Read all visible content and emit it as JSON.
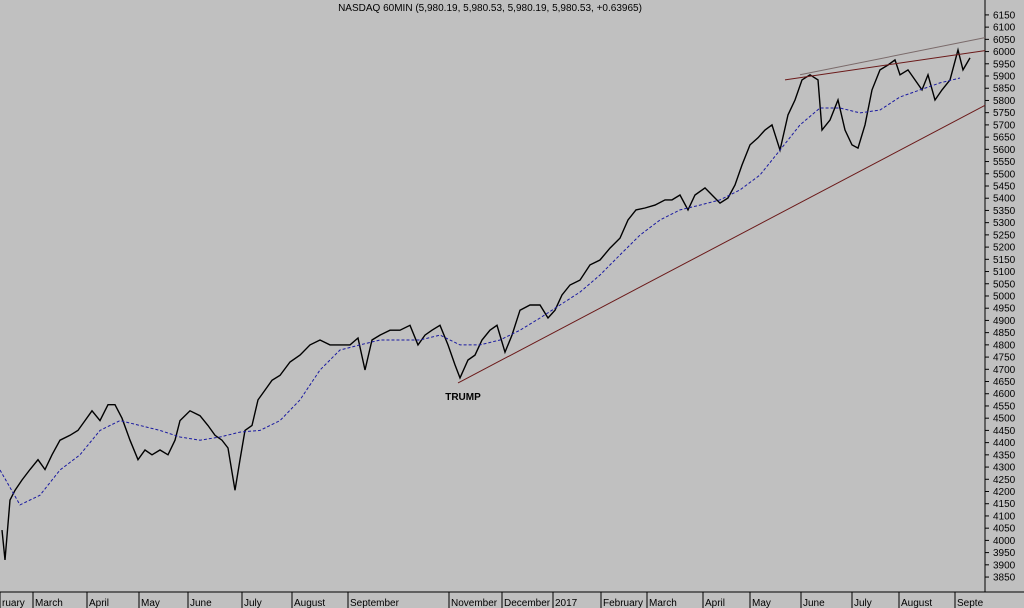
{
  "chart_data": {
    "type": "line",
    "title": "NASDAQ 60MIN (5,980.19, 5,980.53, 5,980.19, 5,980.53, +0.63965)",
    "annotation": "TRUMP",
    "xlim": [
      0,
      985
    ],
    "ylim": [
      3797,
      6211
    ],
    "xticks": [
      {
        "value": 0,
        "label": "ruary"
      },
      {
        "value": 33,
        "label": "March"
      },
      {
        "value": 87,
        "label": "April"
      },
      {
        "value": 139,
        "label": "May"
      },
      {
        "value": 188,
        "label": "June"
      },
      {
        "value": 242,
        "label": "July"
      },
      {
        "value": 292,
        "label": "August"
      },
      {
        "value": 348,
        "label": "September"
      },
      {
        "value": 449,
        "label": "November"
      },
      {
        "value": 502,
        "label": "December"
      },
      {
        "value": 553,
        "label": "2017"
      },
      {
        "value": 601,
        "label": "February"
      },
      {
        "value": 647,
        "label": "March"
      },
      {
        "value": 703,
        "label": "April"
      },
      {
        "value": 750,
        "label": "May"
      },
      {
        "value": 801,
        "label": "June"
      },
      {
        "value": 852,
        "label": "July"
      },
      {
        "value": 899,
        "label": "August"
      },
      {
        "value": 955,
        "label": "Septe"
      }
    ],
    "yticks": [
      3850,
      3900,
      3950,
      4000,
      4050,
      4100,
      4150,
      4200,
      4250,
      4300,
      4350,
      4400,
      4450,
      4500,
      4550,
      4600,
      4650,
      4700,
      4750,
      4800,
      4850,
      4900,
      4950,
      5000,
      5050,
      5100,
      5150,
      5200,
      5250,
      5300,
      5350,
      5400,
      5450,
      5500,
      5550,
      5600,
      5650,
      5700,
      5750,
      5800,
      5850,
      5900,
      5950,
      6000,
      6050,
      6100,
      6150
    ],
    "series": [
      {
        "color": "#000000",
        "dash": false,
        "x": [
          2,
          5,
          10,
          15,
          22,
          30,
          38,
          45,
          52,
          60,
          70,
          78,
          85,
          92,
          100,
          108,
          115,
          122,
          130,
          138,
          145,
          152,
          160,
          168,
          175,
          180,
          190,
          200,
          208,
          215,
          222,
          228,
          235,
          240,
          245,
          252,
          258,
          265,
          272,
          280,
          290,
          300,
          310,
          320,
          330,
          340,
          350,
          358,
          365,
          372,
          380,
          390,
          400,
          410,
          418,
          425,
          432,
          440,
          448,
          455,
          460,
          468,
          475,
          482,
          490,
          497,
          505,
          512,
          520,
          530,
          540,
          548,
          555,
          562,
          570,
          580,
          590,
          600,
          610,
          620,
          628,
          636,
          645,
          655,
          665,
          672,
          680,
          688,
          695,
          705,
          712,
          720,
          728,
          735,
          742,
          750,
          758,
          765,
          772,
          780,
          788,
          795,
          802,
          810,
          818,
          822,
          830,
          838,
          845,
          852,
          858,
          865,
          872,
          880,
          888,
          895,
          900,
          908,
          915,
          922,
          928,
          935,
          942,
          950,
          958,
          963,
          970
        ],
        "values": [
          4042,
          3920,
          4165,
          4205,
          4247,
          4290,
          4330,
          4290,
          4350,
          4410,
          4430,
          4450,
          4490,
          4530,
          4490,
          4555,
          4555,
          4500,
          4410,
          4330,
          4370,
          4350,
          4370,
          4350,
          4410,
          4490,
          4530,
          4510,
          4470,
          4430,
          4410,
          4378,
          4205,
          4330,
          4450,
          4470,
          4575,
          4615,
          4655,
          4675,
          4730,
          4758,
          4800,
          4820,
          4800,
          4800,
          4800,
          4828,
          4697,
          4820,
          4840,
          4860,
          4860,
          4880,
          4800,
          4840,
          4860,
          4880,
          4800,
          4718,
          4665,
          4738,
          4758,
          4820,
          4860,
          4880,
          4770,
          4840,
          4942,
          4963,
          4963,
          4910,
          4942,
          5004,
          5045,
          5065,
          5127,
          5147,
          5196,
          5237,
          5311,
          5352,
          5360,
          5372,
          5393,
          5393,
          5413,
          5352,
          5413,
          5442,
          5413,
          5380,
          5401,
          5454,
          5536,
          5618,
          5647,
          5679,
          5700,
          5597,
          5741,
          5802,
          5884,
          5905,
          5884,
          5679,
          5720,
          5802,
          5679,
          5618,
          5605,
          5700,
          5843,
          5925,
          5945,
          5966,
          5905,
          5925,
          5884,
          5843,
          5905,
          5802,
          5843,
          5884,
          6007,
          5925,
          5974
        ]
      },
      {
        "color": "#1a1aa0",
        "dash": true,
        "x": [
          0,
          20,
          40,
          60,
          80,
          100,
          120,
          140,
          160,
          180,
          200,
          220,
          240,
          260,
          280,
          300,
          320,
          340,
          360,
          380,
          400,
          420,
          440,
          460,
          480,
          500,
          520,
          540,
          560,
          580,
          600,
          620,
          640,
          660,
          680,
          700,
          720,
          740,
          760,
          780,
          800,
          820,
          840,
          860,
          880,
          900,
          920,
          940,
          960
        ],
        "values": [
          4288,
          4145,
          4185,
          4288,
          4350,
          4450,
          4490,
          4470,
          4450,
          4423,
          4410,
          4423,
          4443,
          4450,
          4490,
          4575,
          4697,
          4779,
          4800,
          4820,
          4820,
          4820,
          4840,
          4800,
          4800,
          4820,
          4860,
          4910,
          4963,
          5016,
          5086,
          5168,
          5249,
          5311,
          5352,
          5372,
          5393,
          5434,
          5495,
          5597,
          5700,
          5769,
          5769,
          5749,
          5761,
          5814,
          5843,
          5872,
          5892
        ]
      }
    ],
    "trendlines": [
      {
        "color": "#6b1a1a",
        "x": [
          458,
          985
        ],
        "values": [
          4644,
          5780
        ]
      },
      {
        "color": "#6b1a1a",
        "x": [
          785,
          985
        ],
        "values": [
          5884,
          6004
        ]
      },
      {
        "color": "#7a6a6a",
        "x": [
          800,
          985
        ],
        "values": [
          5905,
          6057
        ]
      }
    ]
  }
}
